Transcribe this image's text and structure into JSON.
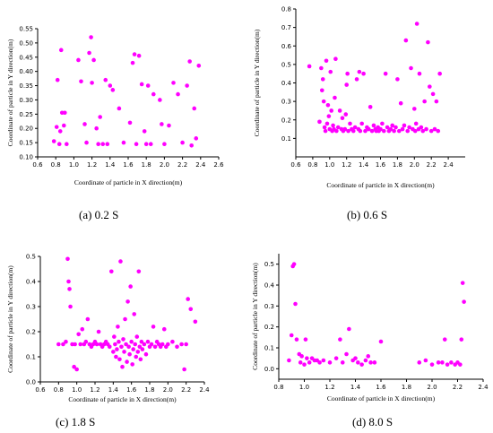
{
  "chart_data": [
    {
      "type": "scatter",
      "caption": "(a) 0.2 S",
      "xlabel": "Coordinate of particle in X direction(m)",
      "ylabel": "Coordinate of particle in Y direction(m)",
      "xlim": [
        0.6,
        2.6
      ],
      "ylim": [
        0.1,
        0.55
      ],
      "xticks": [
        0.6,
        0.8,
        1.0,
        1.2,
        1.4,
        1.6,
        1.8,
        2.0,
        2.2,
        2.4,
        2.6
      ],
      "yticks": [
        0.1,
        0.15,
        0.2,
        0.25,
        0.3,
        0.35,
        0.4,
        0.45,
        0.5,
        0.55
      ],
      "ytick_labels": [
        "0.10",
        "0.15",
        "0.20",
        "0.25",
        "0.30",
        "0.35",
        "0.40",
        "0.45",
        "0.50",
        "0.55"
      ],
      "marker_color": "#ff00ff",
      "points": [
        [
          0.78,
          0.155
        ],
        [
          0.81,
          0.205
        ],
        [
          0.82,
          0.37
        ],
        [
          0.84,
          0.145
        ],
        [
          0.85,
          0.19
        ],
        [
          0.86,
          0.475
        ],
        [
          0.87,
          0.255
        ],
        [
          0.89,
          0.21
        ],
        [
          0.9,
          0.255
        ],
        [
          0.92,
          0.145
        ],
        [
          1.05,
          0.44
        ],
        [
          1.08,
          0.365
        ],
        [
          1.12,
          0.215
        ],
        [
          1.14,
          0.15
        ],
        [
          1.17,
          0.465
        ],
        [
          1.19,
          0.52
        ],
        [
          1.2,
          0.36
        ],
        [
          1.22,
          0.44
        ],
        [
          1.25,
          0.2
        ],
        [
          1.27,
          0.145
        ],
        [
          1.29,
          0.24
        ],
        [
          1.32,
          0.145
        ],
        [
          1.35,
          0.37
        ],
        [
          1.37,
          0.145
        ],
        [
          1.4,
          0.35
        ],
        [
          1.43,
          0.335
        ],
        [
          1.5,
          0.27
        ],
        [
          1.55,
          0.15
        ],
        [
          1.62,
          0.22
        ],
        [
          1.65,
          0.43
        ],
        [
          1.67,
          0.46
        ],
        [
          1.69,
          0.145
        ],
        [
          1.72,
          0.455
        ],
        [
          1.75,
          0.355
        ],
        [
          1.78,
          0.19
        ],
        [
          1.8,
          0.145
        ],
        [
          1.82,
          0.35
        ],
        [
          1.85,
          0.145
        ],
        [
          1.88,
          0.32
        ],
        [
          1.95,
          0.3
        ],
        [
          1.97,
          0.215
        ],
        [
          2.0,
          0.145
        ],
        [
          2.05,
          0.21
        ],
        [
          2.1,
          0.36
        ],
        [
          2.15,
          0.32
        ],
        [
          2.2,
          0.15
        ],
        [
          2.25,
          0.35
        ],
        [
          2.28,
          0.435
        ],
        [
          2.3,
          0.14
        ],
        [
          2.33,
          0.27
        ],
        [
          2.35,
          0.165
        ],
        [
          2.38,
          0.42
        ]
      ]
    },
    {
      "type": "scatter",
      "caption": "(b) 0.6 S",
      "xlabel": "Coordinate of particle in X direction(m)",
      "ylabel": "Coordinate of particle in Y direction(m)",
      "xlim": [
        0.6,
        2.6
      ],
      "ylim": [
        0.0,
        0.8
      ],
      "xticks": [
        0.6,
        0.8,
        1.0,
        1.2,
        1.4,
        1.6,
        1.8,
        2.0,
        2.2,
        2.4
      ],
      "yticks": [
        0.1,
        0.2,
        0.3,
        0.4,
        0.5,
        0.6,
        0.7,
        0.8
      ],
      "marker_color": "#ff00ff",
      "points": [
        [
          0.76,
          0.49
        ],
        [
          0.88,
          0.19
        ],
        [
          0.9,
          0.48
        ],
        [
          0.91,
          0.36
        ],
        [
          0.92,
          0.42
        ],
        [
          0.93,
          0.3
        ],
        [
          0.94,
          0.16
        ],
        [
          0.95,
          0.14
        ],
        [
          0.96,
          0.52
        ],
        [
          0.97,
          0.18
        ],
        [
          0.98,
          0.28
        ],
        [
          0.99,
          0.22
        ],
        [
          1.0,
          0.15
        ],
        [
          1.01,
          0.46
        ],
        [
          1.02,
          0.25
        ],
        [
          1.03,
          0.14
        ],
        [
          1.04,
          0.17
        ],
        [
          1.05,
          0.15
        ],
        [
          1.06,
          0.32
        ],
        [
          1.07,
          0.53
        ],
        [
          1.08,
          0.14
        ],
        [
          1.1,
          0.16
        ],
        [
          1.12,
          0.25
        ],
        [
          1.14,
          0.15
        ],
        [
          1.15,
          0.21
        ],
        [
          1.16,
          0.14
        ],
        [
          1.18,
          0.15
        ],
        [
          1.19,
          0.23
        ],
        [
          1.2,
          0.39
        ],
        [
          1.21,
          0.45
        ],
        [
          1.22,
          0.14
        ],
        [
          1.24,
          0.18
        ],
        [
          1.26,
          0.15
        ],
        [
          1.28,
          0.14
        ],
        [
          1.3,
          0.16
        ],
        [
          1.32,
          0.42
        ],
        [
          1.34,
          0.15
        ],
        [
          1.35,
          0.46
        ],
        [
          1.36,
          0.14
        ],
        [
          1.38,
          0.18
        ],
        [
          1.4,
          0.45
        ],
        [
          1.42,
          0.14
        ],
        [
          1.44,
          0.16
        ],
        [
          1.46,
          0.15
        ],
        [
          1.48,
          0.27
        ],
        [
          1.5,
          0.14
        ],
        [
          1.52,
          0.17
        ],
        [
          1.54,
          0.15
        ],
        [
          1.55,
          0.14
        ],
        [
          1.57,
          0.16
        ],
        [
          1.58,
          0.14
        ],
        [
          1.6,
          0.15
        ],
        [
          1.62,
          0.18
        ],
        [
          1.64,
          0.14
        ],
        [
          1.66,
          0.45
        ],
        [
          1.68,
          0.16
        ],
        [
          1.7,
          0.14
        ],
        [
          1.72,
          0.15
        ],
        [
          1.74,
          0.17
        ],
        [
          1.76,
          0.14
        ],
        [
          1.78,
          0.16
        ],
        [
          1.8,
          0.42
        ],
        [
          1.82,
          0.14
        ],
        [
          1.84,
          0.29
        ],
        [
          1.86,
          0.15
        ],
        [
          1.88,
          0.17
        ],
        [
          1.9,
          0.63
        ],
        [
          1.92,
          0.14
        ],
        [
          1.94,
          0.16
        ],
        [
          1.96,
          0.48
        ],
        [
          1.98,
          0.15
        ],
        [
          2.0,
          0.26
        ],
        [
          2.01,
          0.14
        ],
        [
          2.02,
          0.18
        ],
        [
          2.03,
          0.72
        ],
        [
          2.05,
          0.15
        ],
        [
          2.06,
          0.45
        ],
        [
          2.08,
          0.16
        ],
        [
          2.1,
          0.14
        ],
        [
          2.12,
          0.3
        ],
        [
          2.14,
          0.15
        ],
        [
          2.16,
          0.62
        ],
        [
          2.18,
          0.38
        ],
        [
          2.2,
          0.14
        ],
        [
          2.22,
          0.34
        ],
        [
          2.24,
          0.15
        ],
        [
          2.26,
          0.3
        ],
        [
          2.28,
          0.14
        ],
        [
          2.3,
          0.45
        ]
      ]
    },
    {
      "type": "scatter",
      "caption": "(c) 1.8 S",
      "xlabel": "Coordinate of particle in X direction(m)",
      "ylabel": "Coordinate of particle in Y direction(m)",
      "xlim": [
        0.6,
        2.4
      ],
      "ylim": [
        0.0,
        0.5
      ],
      "xticks": [
        0.6,
        0.8,
        1.0,
        1.2,
        1.4,
        1.6,
        1.8,
        2.0,
        2.2,
        2.4
      ],
      "yticks": [
        0.0,
        0.1,
        0.2,
        0.3,
        0.4,
        0.5
      ],
      "marker_color": "#ff00ff",
      "points": [
        [
          0.8,
          0.15
        ],
        [
          0.85,
          0.15
        ],
        [
          0.88,
          0.16
        ],
        [
          0.9,
          0.49
        ],
        [
          0.91,
          0.4
        ],
        [
          0.92,
          0.37
        ],
        [
          0.93,
          0.3
        ],
        [
          0.95,
          0.15
        ],
        [
          0.97,
          0.06
        ],
        [
          0.98,
          0.15
        ],
        [
          1.0,
          0.05
        ],
        [
          1.02,
          0.19
        ],
        [
          1.04,
          0.15
        ],
        [
          1.06,
          0.21
        ],
        [
          1.08,
          0.15
        ],
        [
          1.1,
          0.16
        ],
        [
          1.12,
          0.25
        ],
        [
          1.14,
          0.15
        ],
        [
          1.16,
          0.14
        ],
        [
          1.18,
          0.15
        ],
        [
          1.2,
          0.16
        ],
        [
          1.22,
          0.15
        ],
        [
          1.24,
          0.2
        ],
        [
          1.26,
          0.15
        ],
        [
          1.28,
          0.14
        ],
        [
          1.3,
          0.15
        ],
        [
          1.32,
          0.16
        ],
        [
          1.34,
          0.15
        ],
        [
          1.36,
          0.14
        ],
        [
          1.38,
          0.44
        ],
        [
          1.4,
          0.12
        ],
        [
          1.41,
          0.18
        ],
        [
          1.42,
          0.15
        ],
        [
          1.43,
          0.1
        ],
        [
          1.44,
          0.13
        ],
        [
          1.45,
          0.22
        ],
        [
          1.46,
          0.16
        ],
        [
          1.47,
          0.09
        ],
        [
          1.48,
          0.48
        ],
        [
          1.49,
          0.14
        ],
        [
          1.5,
          0.06
        ],
        [
          1.51,
          0.17
        ],
        [
          1.52,
          0.12
        ],
        [
          1.53,
          0.25
        ],
        [
          1.54,
          0.15
        ],
        [
          1.55,
          0.08
        ],
        [
          1.56,
          0.32
        ],
        [
          1.57,
          0.14
        ],
        [
          1.58,
          0.11
        ],
        [
          1.59,
          0.38
        ],
        [
          1.6,
          0.16
        ],
        [
          1.61,
          0.07
        ],
        [
          1.62,
          0.13
        ],
        [
          1.63,
          0.27
        ],
        [
          1.64,
          0.15
        ],
        [
          1.65,
          0.1
        ],
        [
          1.66,
          0.18
        ],
        [
          1.67,
          0.12
        ],
        [
          1.68,
          0.44
        ],
        [
          1.69,
          0.14
        ],
        [
          1.7,
          0.09
        ],
        [
          1.71,
          0.16
        ],
        [
          1.72,
          0.13
        ],
        [
          1.74,
          0.15
        ],
        [
          1.76,
          0.11
        ],
        [
          1.78,
          0.16
        ],
        [
          1.8,
          0.14
        ],
        [
          1.82,
          0.15
        ],
        [
          1.84,
          0.22
        ],
        [
          1.86,
          0.14
        ],
        [
          1.88,
          0.16
        ],
        [
          1.9,
          0.15
        ],
        [
          1.92,
          0.14
        ],
        [
          1.94,
          0.15
        ],
        [
          1.96,
          0.21
        ],
        [
          1.98,
          0.14
        ],
        [
          2.0,
          0.15
        ],
        [
          2.05,
          0.16
        ],
        [
          2.1,
          0.14
        ],
        [
          2.15,
          0.15
        ],
        [
          2.18,
          0.05
        ],
        [
          2.2,
          0.15
        ],
        [
          2.22,
          0.33
        ],
        [
          2.25,
          0.29
        ],
        [
          2.3,
          0.24
        ]
      ]
    },
    {
      "type": "scatter",
      "caption": "(d) 8.0 S",
      "xlabel": "Coordinate of particle in X direction(m)",
      "ylabel": "Coordinate of particle in Y direction(m)",
      "xlim": [
        0.8,
        2.4
      ],
      "ylim": [
        -0.05,
        0.55
      ],
      "xticks": [
        0.8,
        1.0,
        1.2,
        1.4,
        1.6,
        1.8,
        2.0,
        2.2,
        2.4
      ],
      "xtick_labels": [
        "0.8",
        "1.0",
        "1.2",
        "1.4",
        "1.6",
        "1.8",
        "2.0",
        "2.2",
        "2.4"
      ],
      "yticks": [
        0.0,
        0.1,
        0.2,
        0.3,
        0.4,
        0.5
      ],
      "marker_color": "#ff00ff",
      "points": [
        [
          0.88,
          0.04
        ],
        [
          0.9,
          0.16
        ],
        [
          0.91,
          0.49
        ],
        [
          0.92,
          0.5
        ],
        [
          0.93,
          0.31
        ],
        [
          0.94,
          0.14
        ],
        [
          0.96,
          0.07
        ],
        [
          0.97,
          0.03
        ],
        [
          0.98,
          0.06
        ],
        [
          1.0,
          0.02
        ],
        [
          1.01,
          0.14
        ],
        [
          1.02,
          0.05
        ],
        [
          1.04,
          0.03
        ],
        [
          1.06,
          0.05
        ],
        [
          1.08,
          0.04
        ],
        [
          1.1,
          0.04
        ],
        [
          1.12,
          0.03
        ],
        [
          1.15,
          0.04
        ],
        [
          1.2,
          0.03
        ],
        [
          1.25,
          0.05
        ],
        [
          1.28,
          0.14
        ],
        [
          1.3,
          0.03
        ],
        [
          1.33,
          0.07
        ],
        [
          1.35,
          0.19
        ],
        [
          1.38,
          0.04
        ],
        [
          1.4,
          0.05
        ],
        [
          1.42,
          0.03
        ],
        [
          1.45,
          0.02
        ],
        [
          1.48,
          0.04
        ],
        [
          1.5,
          0.06
        ],
        [
          1.52,
          0.03
        ],
        [
          1.55,
          0.03
        ],
        [
          1.6,
          0.13
        ],
        [
          1.9,
          0.03
        ],
        [
          1.95,
          0.04
        ],
        [
          2.0,
          0.02
        ],
        [
          2.05,
          0.03
        ],
        [
          2.08,
          0.03
        ],
        [
          2.1,
          0.14
        ],
        [
          2.12,
          0.02
        ],
        [
          2.15,
          0.03
        ],
        [
          2.18,
          0.02
        ],
        [
          2.2,
          0.03
        ],
        [
          2.22,
          0.02
        ],
        [
          2.23,
          0.14
        ],
        [
          2.24,
          0.41
        ],
        [
          2.25,
          0.32
        ]
      ]
    }
  ]
}
